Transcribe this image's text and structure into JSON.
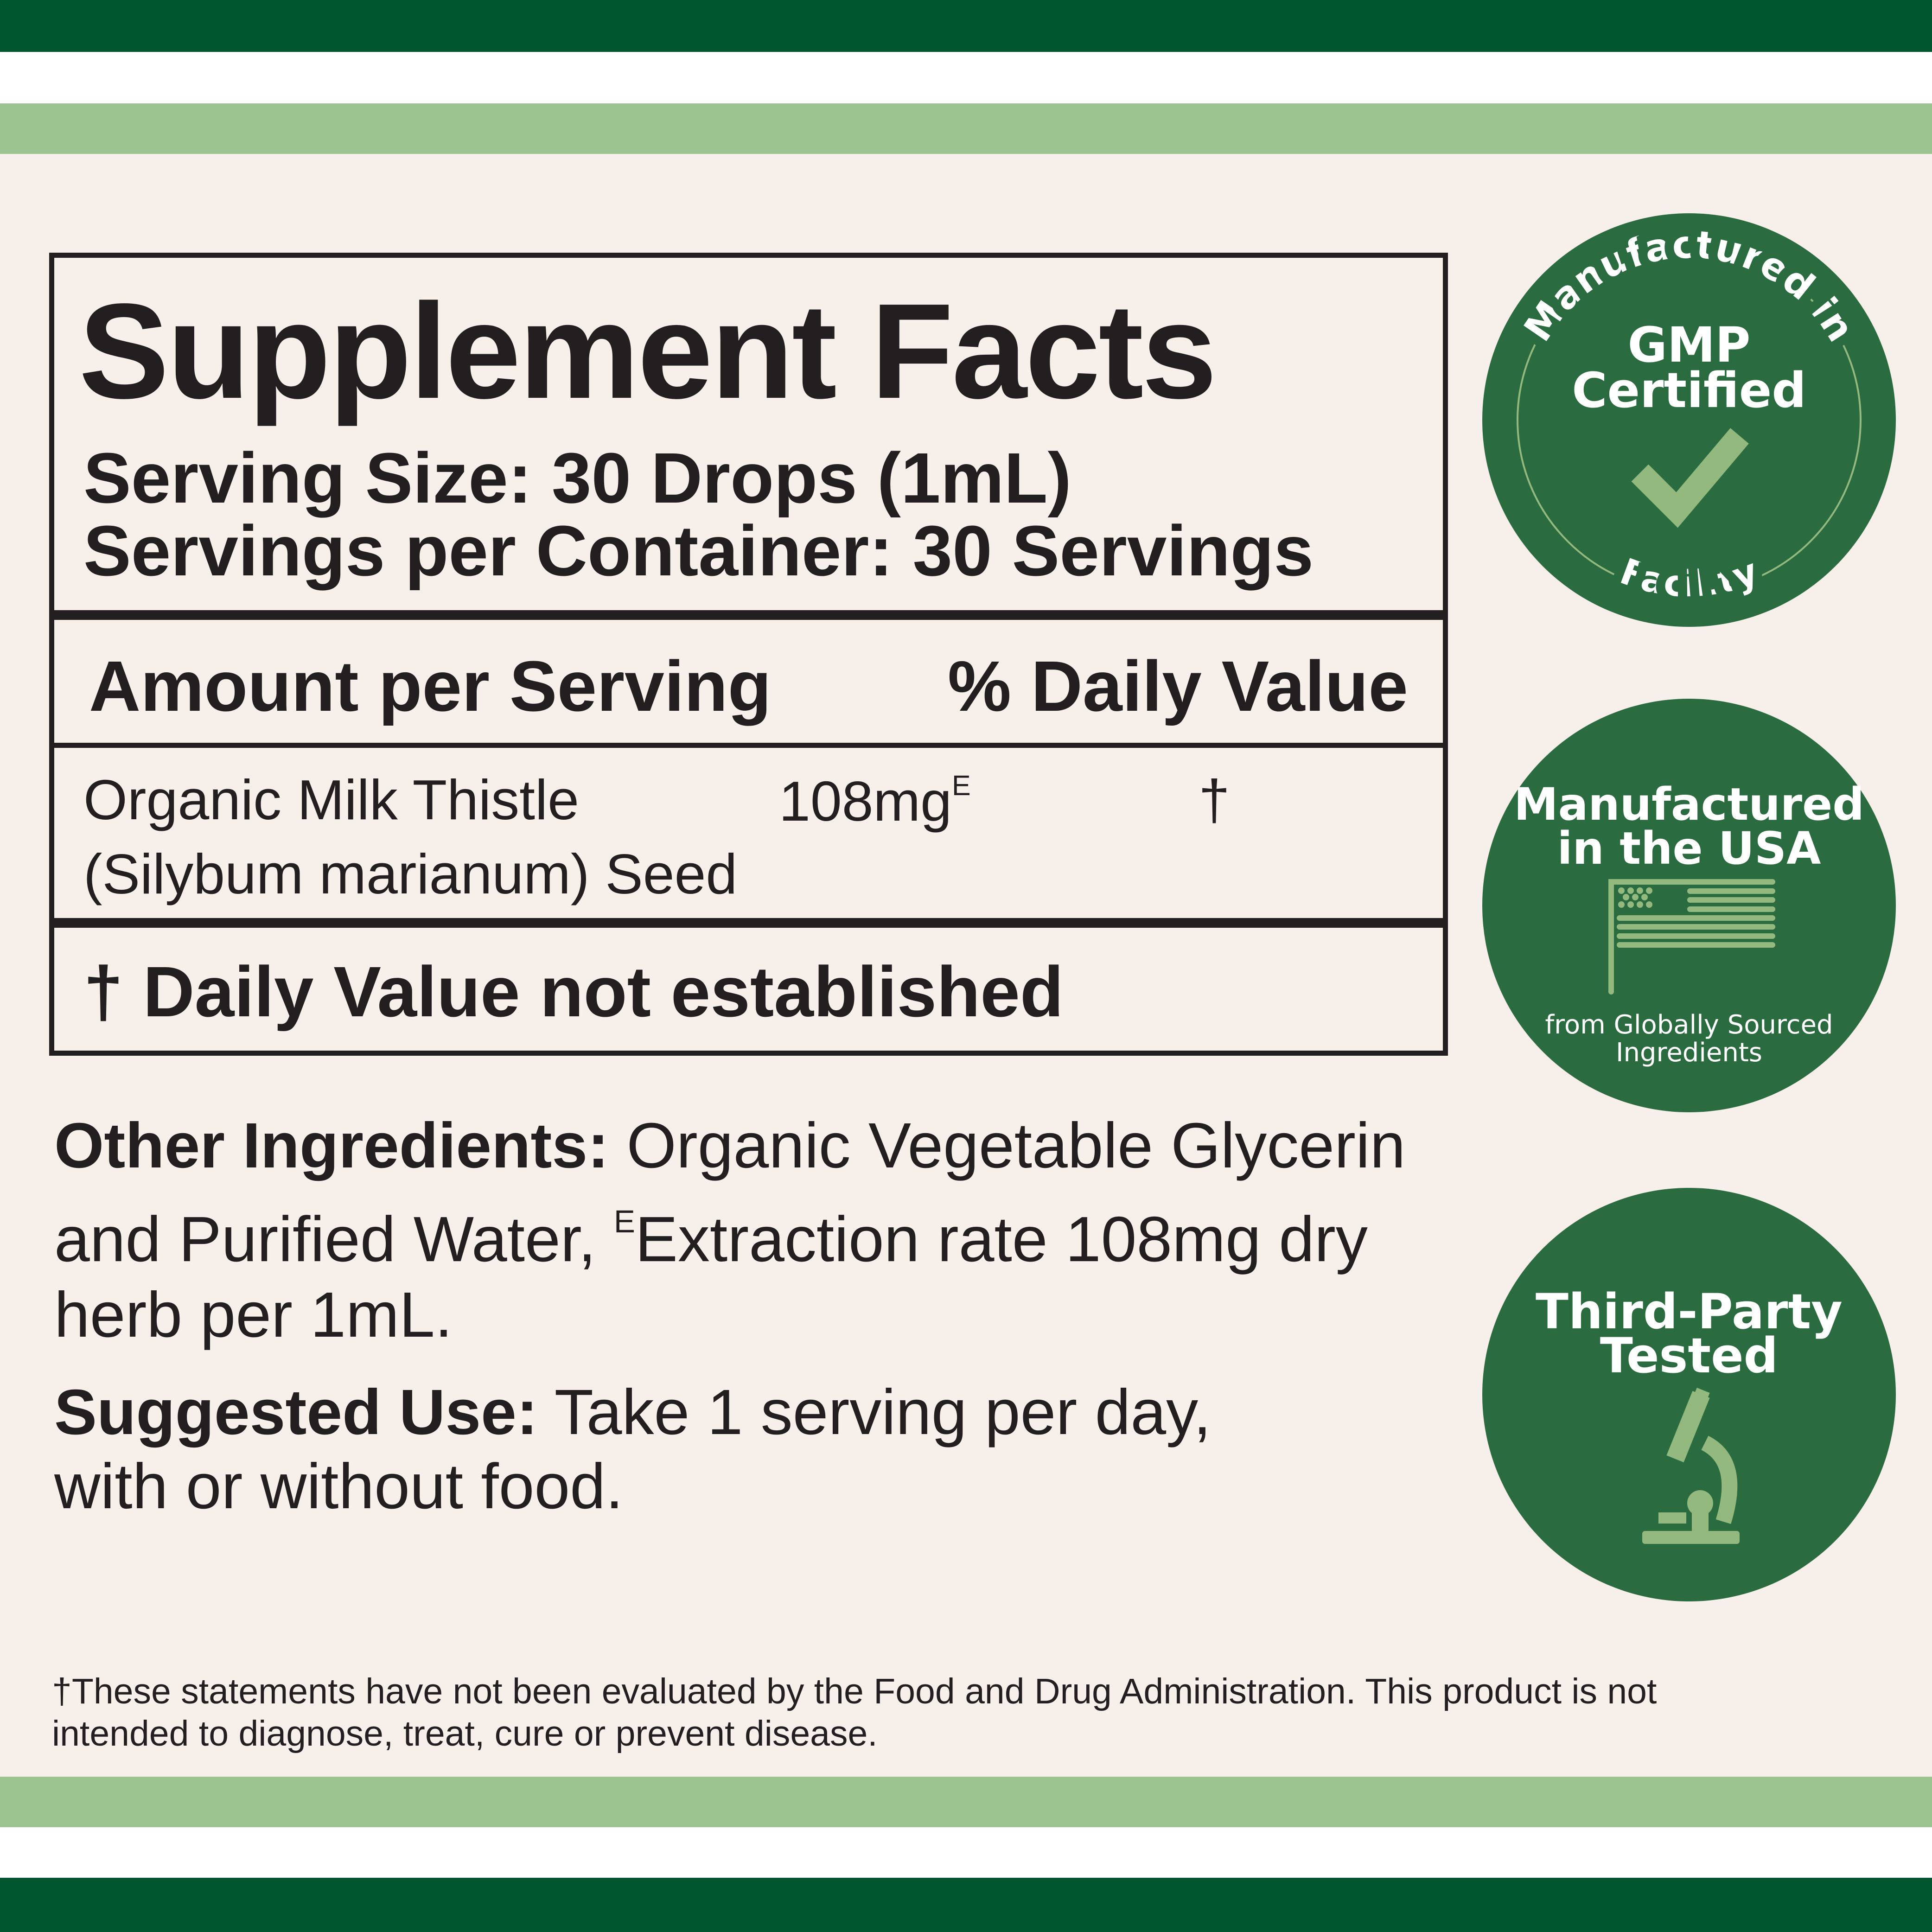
{
  "colors": {
    "dark_green": "#00562f",
    "light_green": "#9bc491",
    "badge_green": "#2a6b3f",
    "icon_green": "#93b97f",
    "background": "#f7efea"
  },
  "facts": {
    "title": "Supplement Facts",
    "serving_size": "Serving Size: 30 Drops (1mL)",
    "servings_per_container": "Servings per Container: 30 Servings",
    "amount_header": "Amount per Serving",
    "dv_header": "% Daily Value",
    "ingredient": {
      "name_line1": "Organic Milk Thistle",
      "name_line2": "(Silybum marianum) Seed",
      "amount": "108mg",
      "amount_sup": "E",
      "dv": "†"
    },
    "footnote": "† Daily Value not established"
  },
  "other_ingredients": {
    "label": "Other Ingredients:",
    "line1": " Organic Vegetable Glycerin",
    "line2a": "and Purified Water, ",
    "line2_sup": "E",
    "line2b": "Extraction rate 108mg dry",
    "line3": "herb per 1mL."
  },
  "suggested_use": {
    "label": "Suggested Use:",
    "line1": " Take 1 serving per day,",
    "line2": "with or without food."
  },
  "disclaimer": {
    "line1": "†These statements have not been evaluated by the Food and Drug Administration. This product is not",
    "line2": "intended to diagnose, treat, cure or prevent disease."
  },
  "badges": {
    "gmp": {
      "arc_top": "Manufactured in",
      "line1": "GMP",
      "line2": "Certified",
      "arc_bottom": "Facility",
      "icon": "checkmark-icon"
    },
    "usa": {
      "line1": "Manufactured",
      "line2": "in the USA",
      "sub1": "from Globally Sourced",
      "sub2": "Ingredients",
      "icon": "us-flag-icon"
    },
    "tested": {
      "line1": "Third-Party",
      "line2": "Tested",
      "icon": "microscope-icon"
    }
  }
}
